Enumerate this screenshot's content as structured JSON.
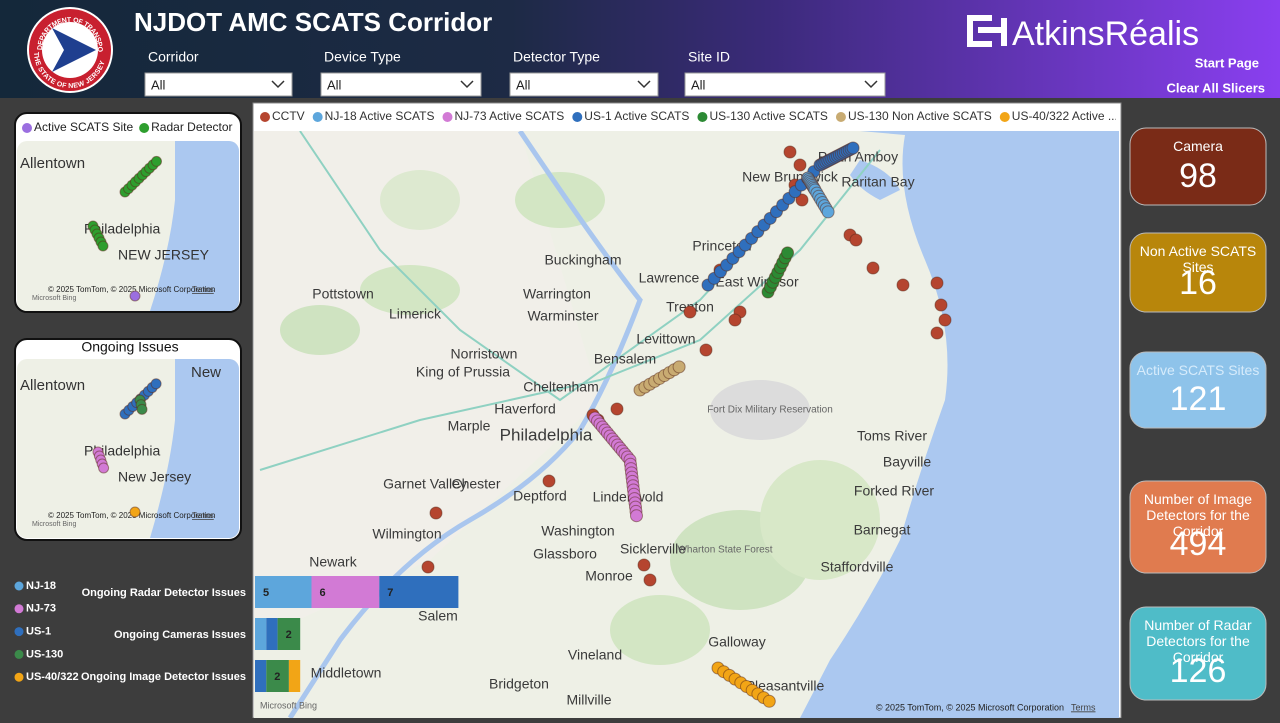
{
  "header": {
    "title": "NJDOT AMC SCATS Corridor",
    "brand": "AtkinsRéalis",
    "start_page": "Start Page",
    "clear_slicers": "Clear All Slicers"
  },
  "logo": {
    "top": "DEPARTMENT OF TRANSPORTATION",
    "bottom": "THE STATE OF NEW JERSEY"
  },
  "filters": [
    {
      "label": "Corridor",
      "value": "All"
    },
    {
      "label": "Device Type",
      "value": "All"
    },
    {
      "label": "Detector Type",
      "value": "All"
    },
    {
      "label": "Site ID",
      "value": "All"
    }
  ],
  "mini_maps": [
    {
      "legend": [
        {
          "name": "Active SCATS Site",
          "color": "#9b6ee0"
        },
        {
          "name": "Radar Detector",
          "color": "#2e9e2e"
        }
      ],
      "labels": [
        "Allentown",
        "Philadelphia",
        "NEW JERSEY"
      ],
      "attribution": "© 2025 TomTom, © 2025 Microsoft Corporation",
      "terms": "Terms",
      "bing": "Microsoft Bing"
    },
    {
      "title": "Ongoing Issues",
      "labels": [
        "Allentown",
        "New",
        "Philadelphia",
        "New Jersey"
      ],
      "attribution": "© 2025 TomTom, © 2025 Microsoft Corporation",
      "terms": "Terms",
      "bing": "Microsoft Bing"
    }
  ],
  "main_map": {
    "legend": [
      {
        "name": "CCTV",
        "color": "#b5452f"
      },
      {
        "name": "NJ-18  Active SCATS",
        "color": "#5da6dc"
      },
      {
        "name": "NJ-73  Active SCATS",
        "color": "#d27ad5"
      },
      {
        "name": "US-1  Active SCATS",
        "color": "#2f6fbd"
      },
      {
        "name": "US-130  Active SCATS",
        "color": "#2c8a34"
      },
      {
        "name": "US-130  Non Active SCATS",
        "color": "#c8ab72"
      },
      {
        "name": "US-40/322  Active ...",
        "color": "#f2a516"
      }
    ],
    "labels": [
      "New Brunswick",
      "Perth Amboy",
      "Raritan Bay",
      "Princeton",
      "Buckingham",
      "Lawrence",
      "East Windsor",
      "Pottstown",
      "Warrington",
      "Limerick",
      "Warminster",
      "Trenton",
      "Levittown",
      "Bensalem",
      "Norristown",
      "King of Prussia",
      "Cheltenham",
      "Haverford",
      "Marple",
      "Philadelphia",
      "Toms River",
      "Bayville",
      "Forked River",
      "Garnet Valley",
      "Chester",
      "Deptford",
      "Lindenwold",
      "Washington",
      "Wilmington",
      "Glassboro",
      "Sicklerville",
      "Barnegat",
      "Staffordville",
      "Newark",
      "Monroe",
      "Salem",
      "Galloway",
      "Vineland",
      "Middletown",
      "Bridgeton",
      "Millville",
      "Pleasantville",
      "Fort Dix Military Reservation",
      "Wharton State Forest"
    ],
    "attribution": "© 2025 TomTom, © 2025 Microsoft Corporation",
    "terms": "Terms",
    "bing": "Microsoft Bing"
  },
  "issues_chart": {
    "legend": [
      {
        "name": "NJ-18",
        "color": "#5da6dc"
      },
      {
        "name": "NJ-73",
        "color": "#d27ad5"
      },
      {
        "name": "US-1",
        "color": "#2f6fbd"
      },
      {
        "name": "US-130",
        "color": "#3b8a4a"
      },
      {
        "name": "US-40/322",
        "color": "#f2a516"
      }
    ],
    "rows": [
      {
        "label": "Ongoing Radar Detector Issues",
        "values": [
          5,
          6,
          7,
          null,
          null
        ]
      },
      {
        "label": "Ongoing Cameras Issues",
        "values": [
          1,
          null,
          1,
          2,
          null
        ]
      },
      {
        "label": "Ongoing Image Detector Issues",
        "values": [
          null,
          null,
          1,
          2,
          1
        ]
      }
    ]
  },
  "kpis": [
    {
      "label": "Camera",
      "value": 98,
      "color": "#7a2b17"
    },
    {
      "label": "Non Active SCATS Sites",
      "value": 16,
      "color": "#b8860b"
    },
    {
      "label": "Active SCATS Sites",
      "value": 121,
      "color": "#8ec3ea"
    },
    {
      "label": "Number of Image Detectors for the Corridor",
      "value": 494,
      "color": "#e07b4f"
    },
    {
      "label": "Number of Radar Detectors for the Corridor",
      "value": 126,
      "color": "#4fbcc8"
    }
  ]
}
